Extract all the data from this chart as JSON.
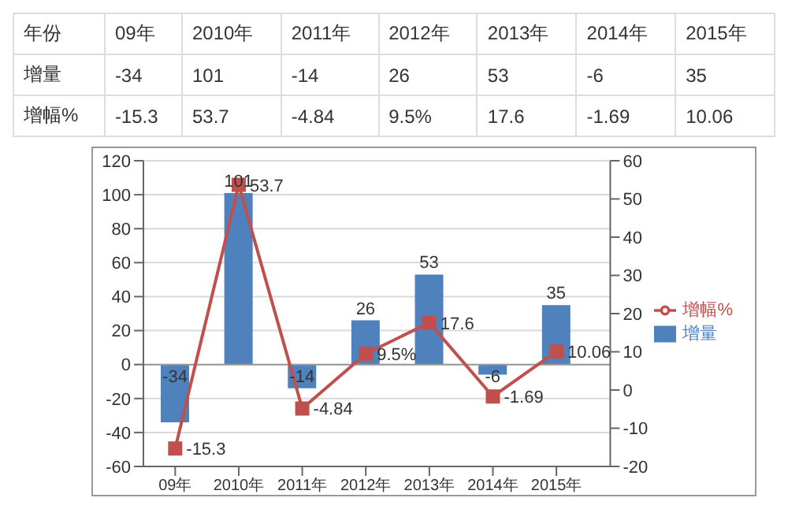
{
  "chart_data": {
    "type": "bar",
    "annotations": [
      "年份"
    ],
    "categories": [
      "09年",
      "2010年",
      "2011年",
      "2012年",
      "2013年",
      "2014年",
      "2015年"
    ],
    "series": [
      {
        "name": "增量",
        "color": "#4f81bd",
        "values": [
          -34,
          101,
          -14,
          26,
          53,
          -6,
          35
        ],
        "value_labels": [
          "-34",
          "101",
          "-14",
          "26",
          "53",
          "-6",
          "35"
        ]
      },
      {
        "name": "增幅%",
        "type": "line",
        "axis": "y2",
        "color": "#c0504d",
        "values": [
          -15.3,
          53.7,
          -4.84,
          9.5,
          17.6,
          -1.69,
          10.06
        ],
        "value_labels": [
          "-15.3",
          "53.7",
          "-4.84",
          "9.5%",
          "17.6",
          "-1.69",
          "10.06"
        ]
      }
    ],
    "ylim": [
      -60,
      120
    ],
    "yticks": [
      -60,
      -40,
      -20,
      0,
      20,
      40,
      60,
      80,
      100,
      120
    ],
    "y2lim": [
      -20,
      60
    ],
    "y2ticks": [
      -20,
      -10,
      0,
      10,
      20,
      30,
      40,
      50,
      60
    ],
    "grid": "y",
    "legend": "right",
    "marker": "square",
    "data_labels": true
  }
}
